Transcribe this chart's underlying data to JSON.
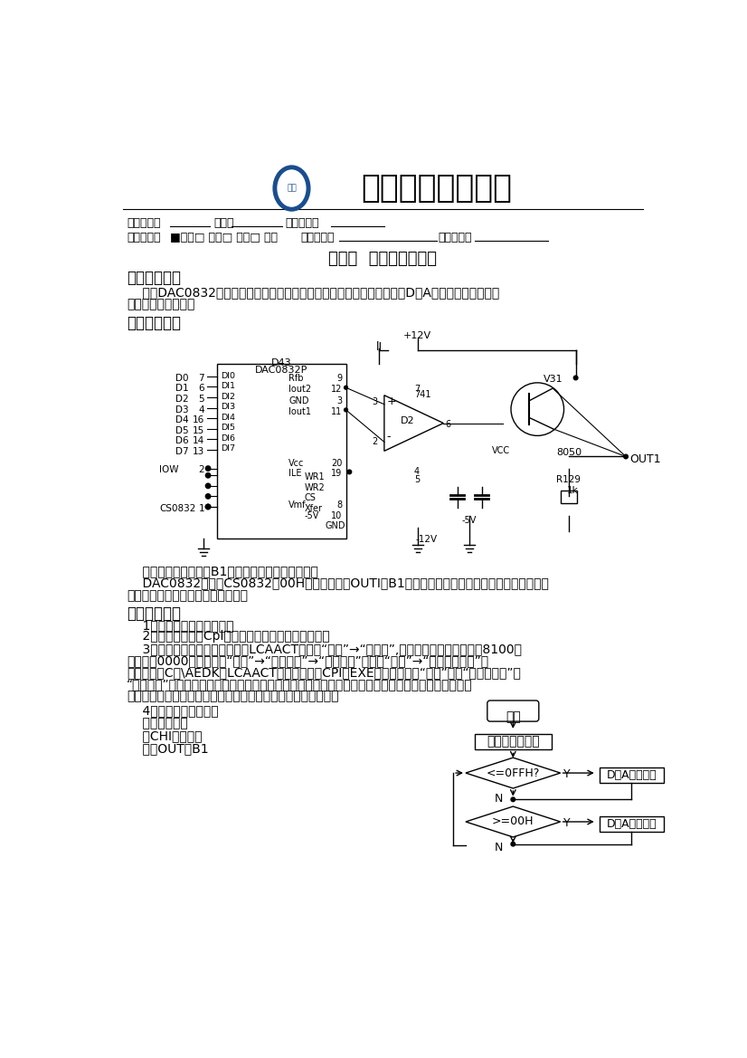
{
  "title": "南昌大学实验报告",
  "subtitle": "实验一  数／模转换实验",
  "section1_title": "一．实验要求",
  "section2_title": "二．实验说明",
  "section3_title": "三．实验步骤",
  "s1_line1": "    掌握DAC0832芯片的性能、使用方法及对应的硬件电路。编写程序控制D／A输出的波形，使其输",
  "s1_line2": "出周期性的三角波。",
  "s2_body1": "    电路实现见主板模块B1，具体说明请见用户手册。",
  "s2_body2": "    DAC0832的片选CS0832接00H，观察输出端OUTI（B1部分）产生三角波由数字量的增减来控制，",
  "s2_body3": "同时要注意三角波要分两段来产生。",
  "step1": "    1、接线：此处无需接线。",
  "step2": "    2、示例程序：见Cpl源文件，程序流程如下图所示。",
  "step3_l1": "    3、运行虚拟示波器方法：打开LCAACT软件中“设置”→“实验机”,将其中的程序段地址设为8100，",
  "step3_l2": "偏移地址0000。然后选择“设置”→“环境参数”→“普通示波”，选择“工具”→“加载目标文件”，",
  "step3_l3": "本实验加载C：\\AEDK＼LCAACT＼试验软件＼CPI．EXE，然后选择在“工具”栏中“软件示波器”中",
  "step3_l4": "“普通示波”，点击开始示波器即程序运行。以后每个实验中的虚拟示波器运行方法同上。只是加载的程",
  "step3_l5": "序要根据实验的不同而不同。如果以后用到该方法，不再赘述。",
  "step4_l1": "    4、现象：程序执行，",
  "step4_l2": "    用虚拟示波器",
  "step4_l3": "    （CHI）观察输",
  "step4_l4": "    出点OUT（B1",
  "fc_start": "开始",
  "fc_set": "设置初始电平为",
  "fc_d1": "<=0FFH?",
  "fc_d2": ">=00H",
  "fc_r1": "D／A输出并增",
  "fc_r2": "D／A输出并减",
  "fc_y": "Y",
  "fc_n": "N",
  "label_student": "学生姓名：",
  "label_id": "学号：",
  "label_major": "专业班级：",
  "label_type": "实验类型：",
  "label_checkboxes": "■验证□ 综合□ 设计□ 创新",
  "label_date": "实验日期：",
  "label_score": "实验成绩：",
  "bg_color": "#ffffff",
  "text_color": "#000000",
  "logo_color": "#1a4d8f"
}
